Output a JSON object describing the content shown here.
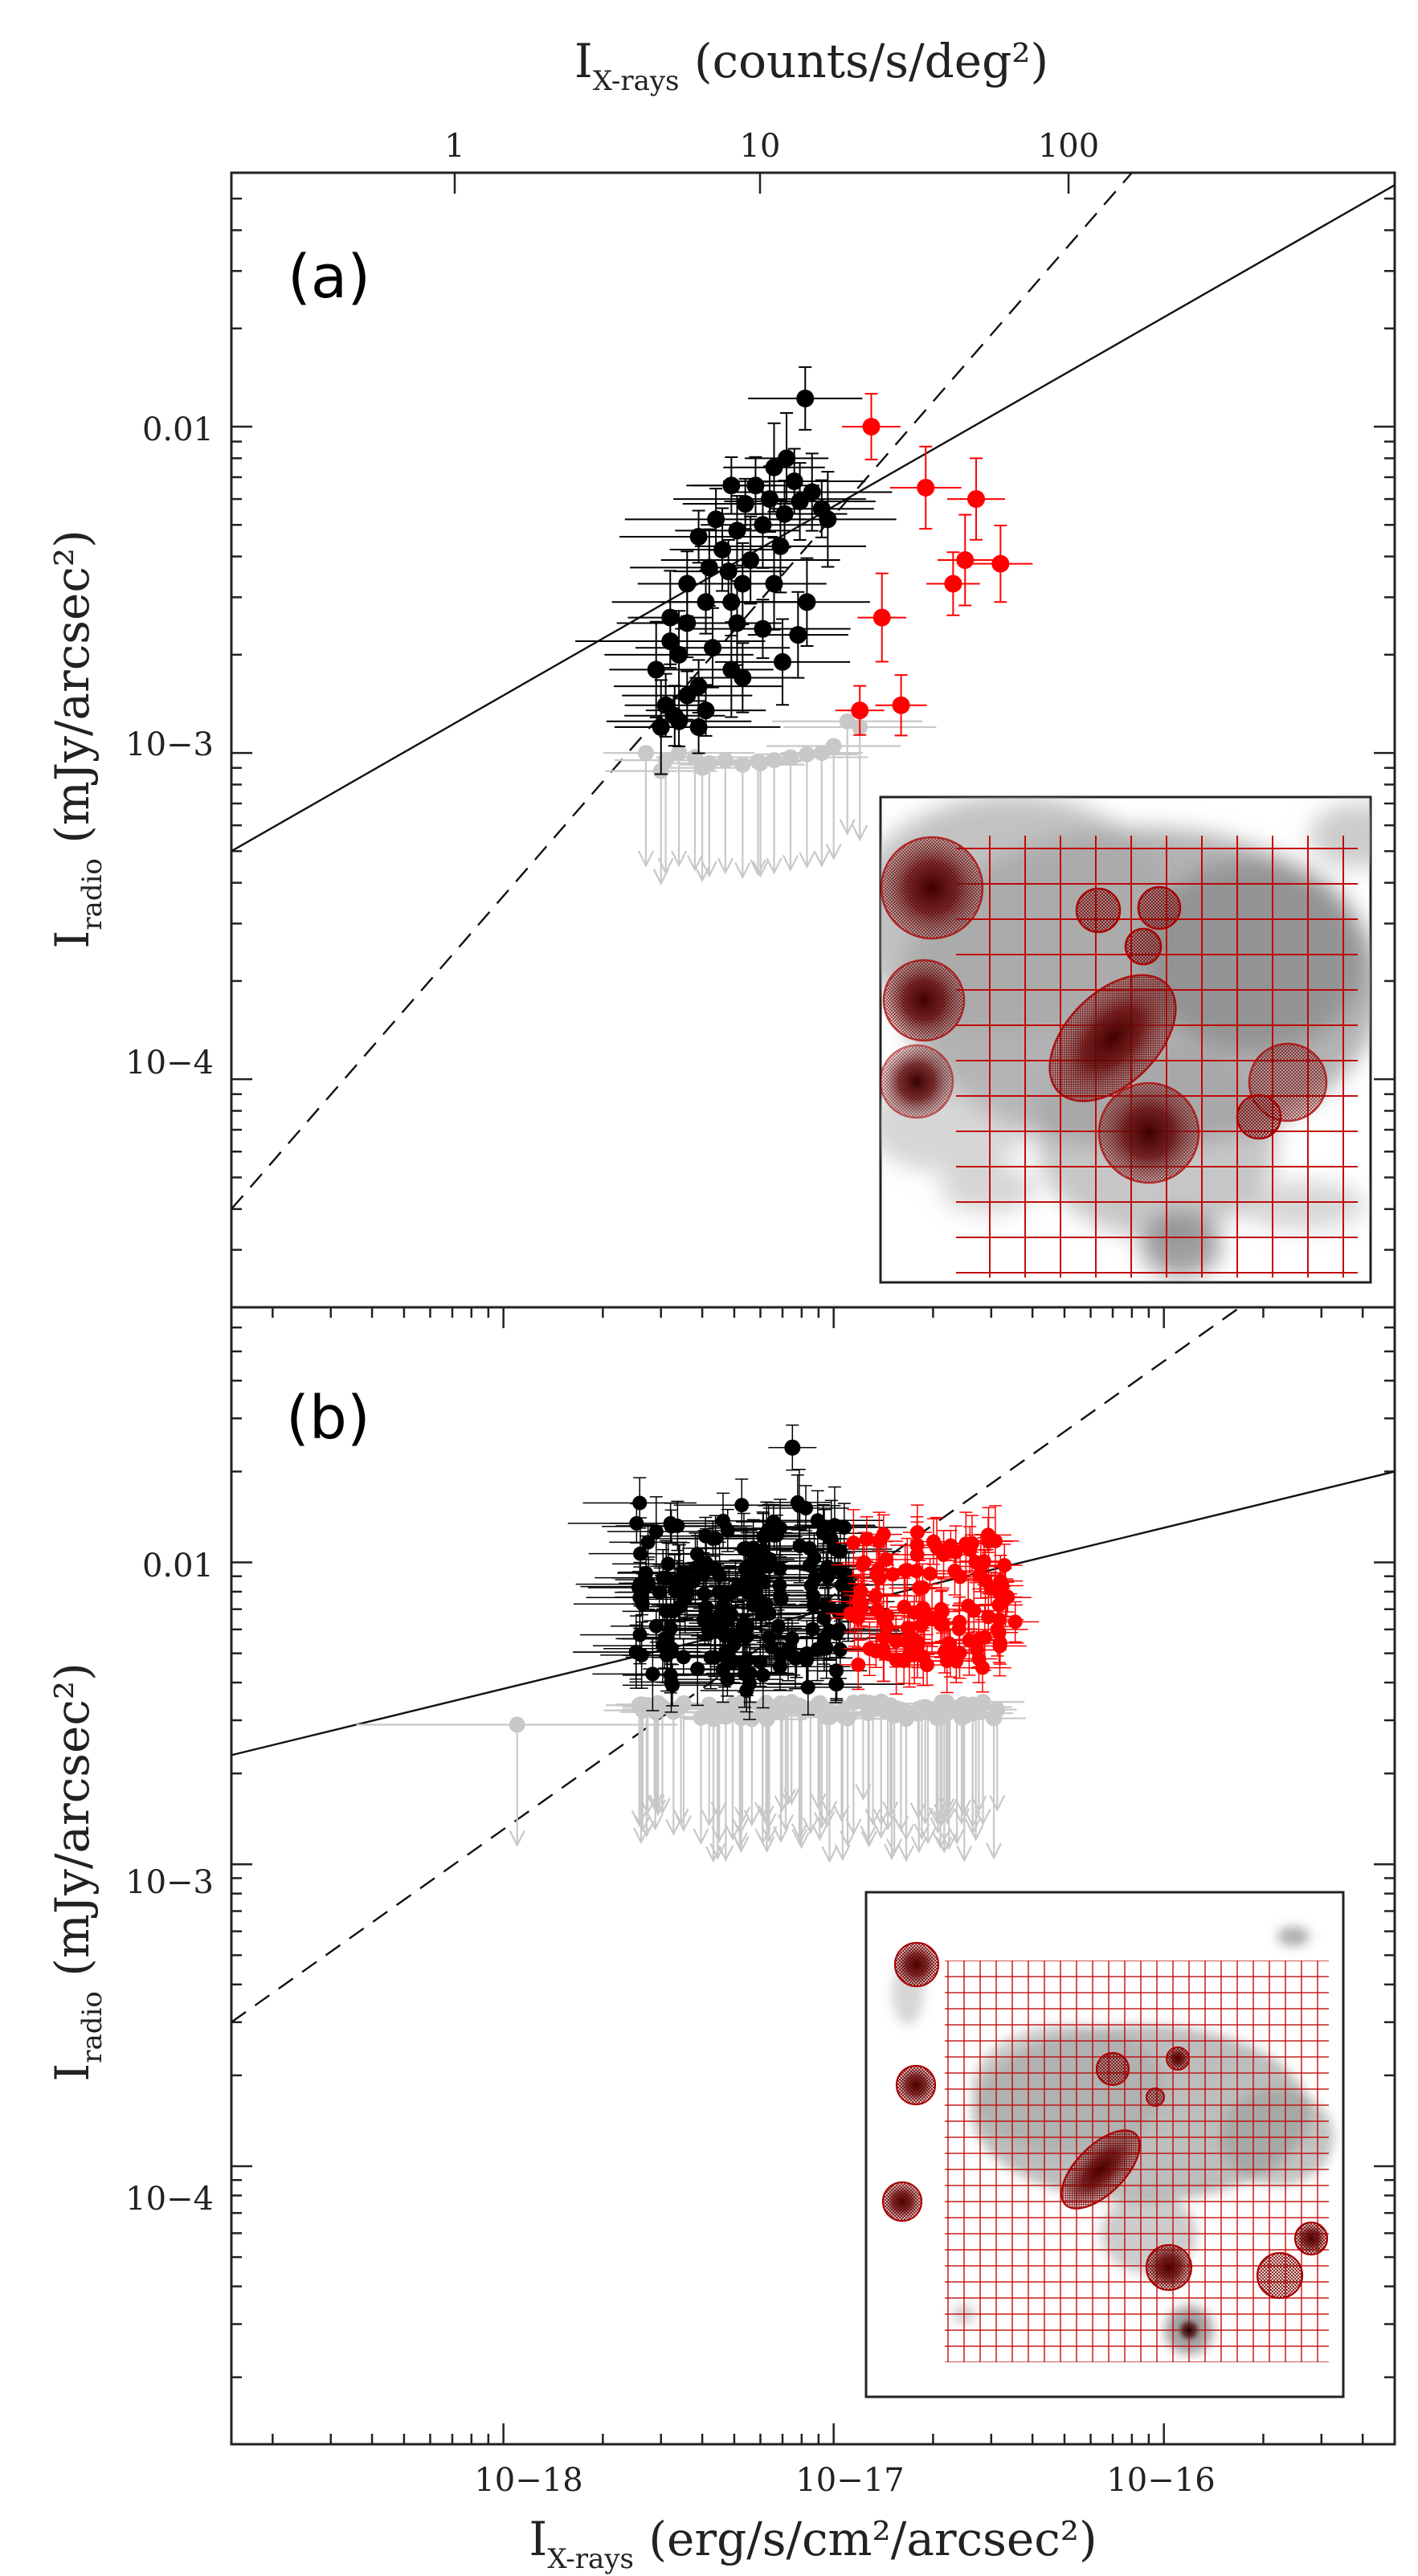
{
  "chart_data": {
    "type": "scatter",
    "figure": {
      "top_axis_label_main": "I",
      "top_axis_label_sub": "X-rays",
      "top_axis_label_units": " (counts/s/deg²)",
      "top_axis_ticks": [
        "1",
        "10",
        "100"
      ],
      "bottom_axis_label_main": "I",
      "bottom_axis_label_sub": "X-rays",
      "bottom_axis_label_units": " (erg/s/cm²/arcsec²)",
      "bottom_axis_ticks": [
        "10−18",
        "10−17",
        "10−16"
      ],
      "y_axis_label_main": "I",
      "y_axis_label_sub": "radio",
      "y_axis_label_units": " (mJy/arcsec²)",
      "x_scale": "log",
      "y_scale": "log",
      "xlim": [
        1.5e-19,
        5e-16
      ]
    },
    "panels": [
      {
        "label": "(a)",
        "ylim": [
          2e-05,
          0.06
        ],
        "y_ticks": [
          "0.01",
          "10−3",
          "10−4"
        ],
        "lines": [
          {
            "style": "solid",
            "points": [
              [
                1.5e-19,
                0.0005
              ],
              [
                5e-16,
                0.055
              ]
            ]
          },
          {
            "style": "dashed",
            "points": [
              [
                1.5e-19,
                4e-05
              ],
              [
                8e-17,
                0.06
              ]
            ]
          }
        ],
        "series": [
          {
            "name": "detected",
            "color": "#000000",
            "points": [
              [
                8.2e-18,
                0.0122
              ],
              [
                7.2e-18,
                0.008
              ],
              [
                6.6e-18,
                0.0075
              ],
              [
                5.8e-18,
                0.0066
              ],
              [
                7.6e-18,
                0.0068
              ],
              [
                8.6e-18,
                0.0063
              ],
              [
                4.9e-18,
                0.0066
              ],
              [
                5.4e-18,
                0.0058
              ],
              [
                6.4e-18,
                0.006
              ],
              [
                7.9e-18,
                0.0059
              ],
              [
                4.4e-18,
                0.0052
              ],
              [
                5.1e-18,
                0.0048
              ],
              [
                6.1e-18,
                0.005
              ],
              [
                7.1e-18,
                0.0054
              ],
              [
                9.2e-18,
                0.0056
              ],
              [
                3.9e-18,
                0.0046
              ],
              [
                4.6e-18,
                0.0042
              ],
              [
                6.9e-18,
                0.0043
              ],
              [
                5.6e-18,
                0.0039
              ],
              [
                4.2e-18,
                0.0037
              ],
              [
                9.6e-18,
                0.0052
              ],
              [
                4.8e-18,
                0.0036
              ],
              [
                3.6e-18,
                0.0033
              ],
              [
                5.3e-18,
                0.0033
              ],
              [
                6.6e-18,
                0.0033
              ],
              [
                4.1e-18,
                0.0029
              ],
              [
                4.9e-18,
                0.0029
              ],
              [
                3.2e-18,
                0.0026
              ],
              [
                8.3e-18,
                0.0029
              ],
              [
                3.6e-18,
                0.0025
              ],
              [
                5.1e-18,
                0.0025
              ],
              [
                6.1e-18,
                0.0024
              ],
              [
                3.2e-18,
                0.0022
              ],
              [
                4.3e-18,
                0.0021
              ],
              [
                3.4e-18,
                0.002
              ],
              [
                7.8e-18,
                0.0023
              ],
              [
                2.9e-18,
                0.0018
              ],
              [
                4.9e-18,
                0.0018
              ],
              [
                7e-18,
                0.0019
              ],
              [
                3.9e-18,
                0.0016
              ],
              [
                3.6e-18,
                0.0015
              ],
              [
                5.3e-18,
                0.0017
              ],
              [
                3.1e-18,
                0.0014
              ],
              [
                3.3e-18,
                0.0013
              ],
              [
                3.9e-18,
                0.0012
              ],
              [
                3e-18,
                0.0012
              ],
              [
                3.4e-18,
                0.00125
              ],
              [
                4.1e-18,
                0.00135
              ]
            ]
          },
          {
            "name": "red",
            "color": "#ff0000",
            "points": [
              [
                1.3e-17,
                0.01
              ],
              [
                1.9e-17,
                0.0065
              ],
              [
                2.7e-17,
                0.006
              ],
              [
                2.5e-17,
                0.0039
              ],
              [
                3.2e-17,
                0.0038
              ],
              [
                2.3e-17,
                0.0033
              ],
              [
                1.4e-17,
                0.0026
              ],
              [
                1.2e-17,
                0.00135
              ],
              [
                1.6e-17,
                0.0014
              ]
            ]
          },
          {
            "name": "upper_limits",
            "color": "#c8c8c8",
            "points": [
              [
                1.1e-17,
                0.00125
              ],
              [
                1.2e-17,
                0.0012
              ],
              [
                2.7e-18,
                0.001
              ],
              [
                3.1e-18,
                0.00095
              ],
              [
                3.4e-18,
                0.001
              ],
              [
                3.8e-18,
                0.00097
              ],
              [
                4.2e-18,
                0.00093
              ],
              [
                4.7e-18,
                0.00095
              ],
              [
                5.3e-18,
                0.00092
              ],
              [
                5.9e-18,
                0.00094
              ],
              [
                6.6e-18,
                0.00095
              ],
              [
                7.4e-18,
                0.00097
              ],
              [
                8.3e-18,
                0.00099
              ],
              [
                9.2e-18,
                0.001
              ],
              [
                3e-18,
                0.00088
              ],
              [
                4e-18,
                0.0009
              ],
              [
                6e-18,
                0.00093
              ],
              [
                1e-17,
                0.00105
              ]
            ]
          }
        ]
      },
      {
        "label": "(b)",
        "ylim": [
          1.2e-05,
          0.07
        ],
        "y_ticks": [
          "0.01",
          "10−3",
          "10−4"
        ],
        "lines": [
          {
            "style": "solid",
            "points": [
              [
                1.5e-19,
                0.0023
              ],
              [
                5e-16,
                0.02
              ]
            ]
          },
          {
            "style": "dashed",
            "points": [
              [
                1.5e-19,
                0.0003
              ],
              [
                1.7e-16,
                0.07
              ]
            ]
          }
        ]
      }
    ]
  }
}
